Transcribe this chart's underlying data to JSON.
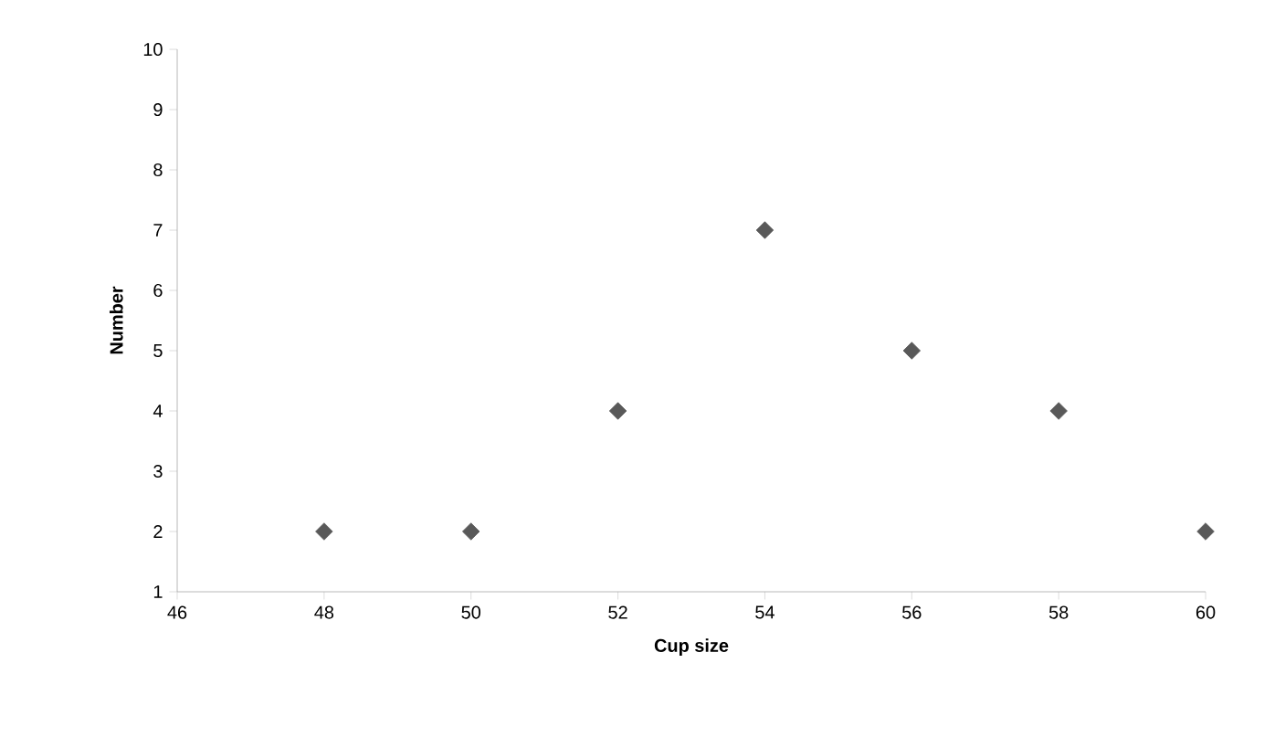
{
  "chart_data": {
    "type": "scatter",
    "xlabel": "Cup size",
    "ylabel": "Number",
    "x": [
      48,
      50,
      52,
      54,
      56,
      58,
      60
    ],
    "series": [
      {
        "color": "#595959",
        "values": [
          2,
          2,
          4,
          7,
          5,
          4,
          2
        ]
      }
    ],
    "xlim": [
      46,
      60
    ],
    "ylim": [
      1,
      10
    ],
    "xticks": [
      46,
      48,
      50,
      52,
      54,
      56,
      58,
      60
    ],
    "yticks": [
      1,
      2,
      3,
      4,
      5,
      6,
      7,
      8,
      9,
      10
    ],
    "grid": false,
    "marker": "diamond"
  }
}
